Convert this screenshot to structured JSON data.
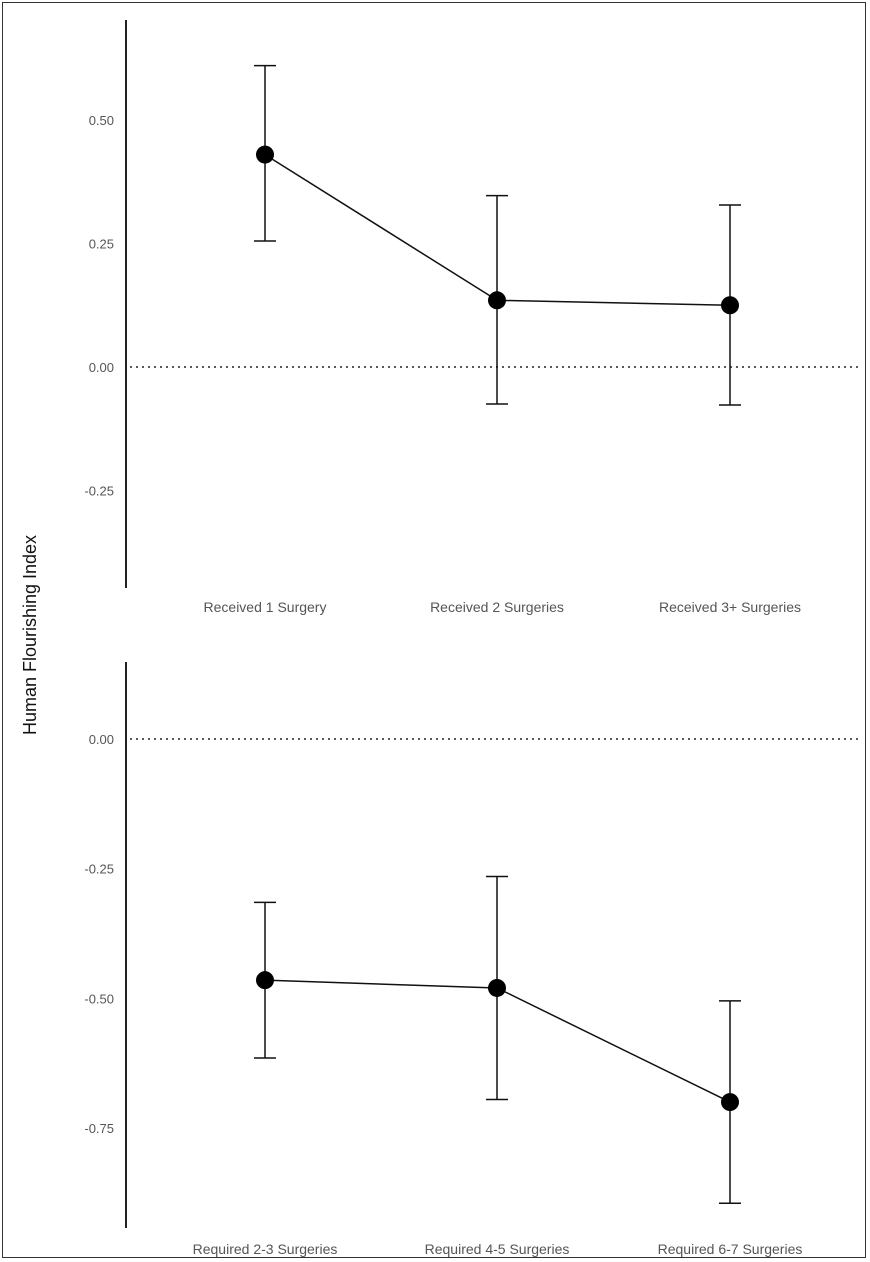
{
  "ylabel": "Human Flourishing Index",
  "chart_data": [
    {
      "type": "line",
      "panel": "top",
      "categories": [
        "Received 1 Surgery",
        "Received 2 Surgeries",
        "Received 3+ Surgeries"
      ],
      "values": [
        0.43,
        0.135,
        0.125
      ],
      "ci_low": [
        0.255,
        -0.075,
        -0.077
      ],
      "ci_high": [
        0.61,
        0.347,
        0.328
      ],
      "yticks": [
        0.5,
        0.25,
        0.0,
        -0.25
      ],
      "ytick_labels": [
        "0.50",
        "0.25",
        "0.00",
        "-0.25"
      ],
      "ylim": [
        -0.45,
        0.7
      ],
      "reference_line": 0.0,
      "reference_style": "dotted",
      "ylabel": "Human Flourishing Index"
    },
    {
      "type": "line",
      "panel": "bottom",
      "categories": [
        "Required 2-3 Surgeries",
        "Required 4-5 Surgeries",
        "Required 6-7 Surgeries"
      ],
      "values": [
        -0.465,
        -0.48,
        -0.7
      ],
      "ci_low": [
        -0.615,
        -0.695,
        -0.895
      ],
      "ci_high": [
        -0.315,
        -0.265,
        -0.505
      ],
      "yticks": [
        0.0,
        -0.25,
        -0.5,
        -0.75
      ],
      "ytick_labels": [
        "0.00",
        "-0.25",
        "-0.50",
        "-0.75"
      ],
      "ylim": [
        -0.92,
        0.16
      ],
      "reference_line": 0.0,
      "reference_style": "dotted",
      "ylabel": "Human Flourishing Index"
    }
  ]
}
